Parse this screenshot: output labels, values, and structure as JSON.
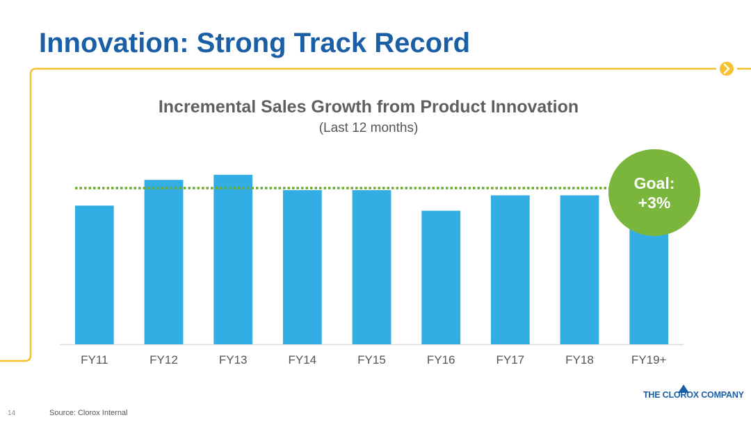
{
  "slide": {
    "title": "Innovation: Strong Track Record",
    "page_number": "14",
    "source": "Source: Clorox Internal",
    "logo_text": "THE CLOROX COMPANY"
  },
  "colors": {
    "title": "#1a5fa6",
    "accent_line": "#f5c12e",
    "bar": "#33aee5",
    "goal_badge": "#7ab53c",
    "goal_line": "#6aaa2d",
    "axis_label": "#555555"
  },
  "goal": {
    "line1": "Goal:",
    "line2": "+3%"
  },
  "chart_data": {
    "type": "bar",
    "title": "Incremental Sales Growth from Product Innovation",
    "subtitle": "(Last 12 months)",
    "xlabel": "",
    "ylabel": "",
    "categories": [
      "FY11",
      "FY12",
      "FY13",
      "FY14",
      "FY15",
      "FY16",
      "FY17",
      "FY18",
      "FY19+"
    ],
    "values": [
      2.7,
      3.2,
      3.3,
      3.0,
      3.0,
      2.6,
      2.9,
      2.9,
      3.0
    ],
    "ylim": [
      0,
      4.0
    ],
    "goal_value": 3.0,
    "grid": false,
    "y_axis_labels_shown": false
  }
}
